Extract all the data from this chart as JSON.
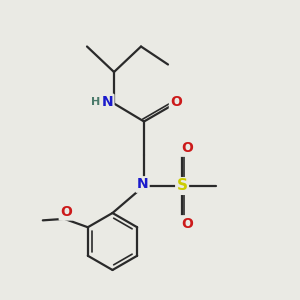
{
  "bg_color": "#eaeae4",
  "bond_color": "#2a2a2a",
  "bond_width": 1.6,
  "atom_colors": {
    "N": "#1a1acc",
    "O": "#cc1a1a",
    "S": "#cccc00",
    "H": "#4a7a6a",
    "C": "#2a2a2a"
  },
  "font_size_atom": 10,
  "font_size_h": 8
}
